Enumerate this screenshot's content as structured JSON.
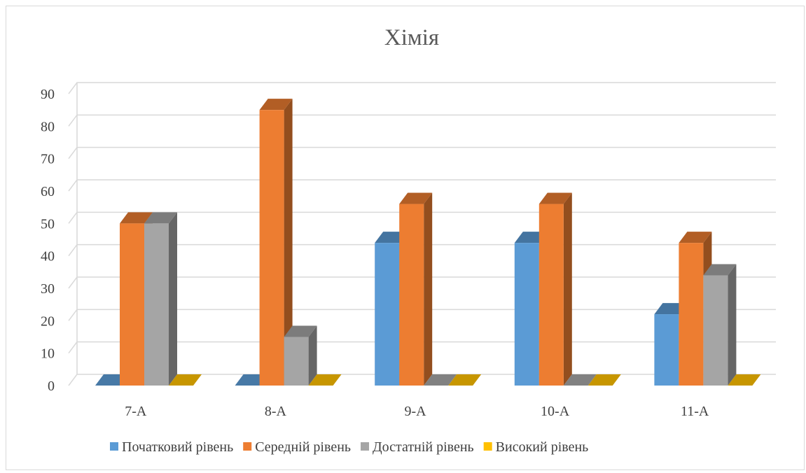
{
  "chart_data": {
    "type": "bar",
    "title": "Хімія",
    "xlabel": "",
    "ylabel": "",
    "ylim": [
      0,
      90
    ],
    "yticks": [
      "0",
      "10",
      "20",
      "30",
      "40",
      "50",
      "60",
      "70",
      "80",
      "90"
    ],
    "grid": true,
    "legend_position": "bottom",
    "style": "3d-clustered-column",
    "categories": [
      "7-А",
      "8-А",
      "9-А",
      "10-А",
      "11-А"
    ],
    "series": [
      {
        "name": "Початковий рівень",
        "color": "#5b9bd5",
        "values": [
          0,
          0,
          44,
          44,
          22
        ]
      },
      {
        "name": "Середній рівень",
        "color": "#ed7d31",
        "values": [
          50,
          85,
          56,
          56,
          44
        ]
      },
      {
        "name": "Достатній рівень",
        "color": "#a5a5a5",
        "values": [
          50,
          15,
          0,
          0,
          34
        ]
      },
      {
        "name": "Високий рівень",
        "color": "#ffc000",
        "values": [
          0,
          0,
          0,
          0,
          0
        ]
      }
    ]
  }
}
